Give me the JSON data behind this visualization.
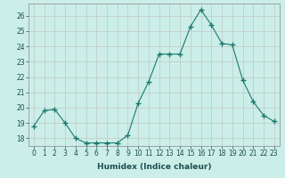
{
  "x": [
    0,
    1,
    2,
    3,
    4,
    5,
    6,
    7,
    8,
    9,
    10,
    11,
    12,
    13,
    14,
    15,
    16,
    17,
    18,
    19,
    20,
    21,
    22,
    23
  ],
  "y": [
    18.8,
    19.8,
    19.9,
    19.0,
    18.0,
    17.7,
    17.7,
    17.7,
    17.7,
    18.2,
    20.3,
    21.7,
    23.5,
    23.5,
    23.5,
    25.3,
    26.4,
    25.4,
    24.2,
    24.1,
    21.8,
    20.4,
    19.5,
    19.1
  ],
  "line_color": "#1a7a6e",
  "marker": "+",
  "marker_size": 4,
  "bg_color": "#cceee8",
  "grid_color": "#c0c8c4",
  "xlabel": "Humidex (Indice chaleur)",
  "xlim": [
    -0.5,
    23.5
  ],
  "ylim": [
    17.5,
    26.8
  ],
  "yticks": [
    18,
    19,
    20,
    21,
    22,
    23,
    24,
    25,
    26
  ],
  "xticks": [
    0,
    1,
    2,
    3,
    4,
    5,
    6,
    7,
    8,
    9,
    10,
    11,
    12,
    13,
    14,
    15,
    16,
    17,
    18,
    19,
    20,
    21,
    22,
    23
  ],
  "font_size_axis": 6.5,
  "font_size_tick": 5.5,
  "spine_color": "#888888",
  "tick_color": "#1a5050",
  "label_color": "#1a5050"
}
